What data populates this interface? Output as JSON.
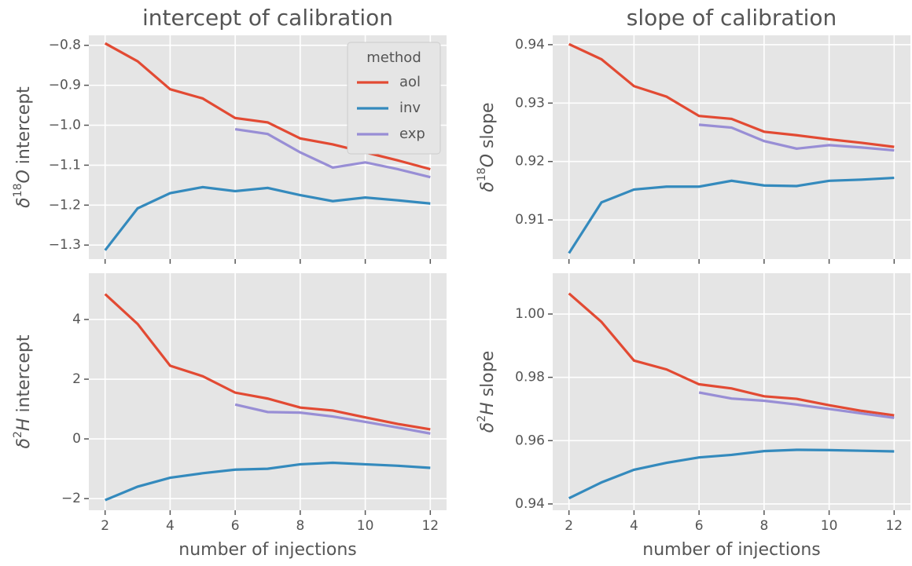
{
  "chart_data": [
    {
      "type": "line",
      "title": "intercept of calibration",
      "ylabel": [
        "δ",
        "18",
        "O",
        " intercept"
      ],
      "x": [
        2,
        3,
        4,
        5,
        6,
        7,
        8,
        9,
        10,
        11,
        12
      ],
      "xlim": [
        1.5,
        12.5
      ],
      "xticks": [
        2,
        4,
        6,
        8,
        10,
        12
      ],
      "ylim": [
        -1.335,
        -0.775
      ],
      "yticks": [
        {
          "value": -1.3,
          "label": "−1.3"
        },
        {
          "value": -1.2,
          "label": "−1.2"
        },
        {
          "value": -1.1,
          "label": "−1.1"
        },
        {
          "value": -1.0,
          "label": "−1.0"
        },
        {
          "value": -0.9,
          "label": "−0.9"
        },
        {
          "value": -0.8,
          "label": "−0.8"
        }
      ],
      "grid": true,
      "legend": "upper right",
      "legend_title": "method",
      "series": [
        {
          "name": "aol",
          "color": "#e24a33",
          "values": [
            -0.795,
            -0.84,
            -0.91,
            -0.933,
            -0.982,
            -0.993,
            -1.033,
            -1.048,
            -1.068,
            -1.088,
            -1.11
          ]
        },
        {
          "name": "inv",
          "color": "#348abd",
          "values": [
            -1.313,
            -1.208,
            -1.17,
            -1.155,
            -1.165,
            -1.157,
            -1.175,
            -1.19,
            -1.181,
            -1.188,
            -1.196
          ]
        },
        {
          "name": "exp",
          "color": "#988ed5",
          "values": [
            null,
            null,
            null,
            null,
            -1.01,
            -1.022,
            -1.068,
            -1.106,
            -1.093,
            -1.11,
            -1.13
          ]
        }
      ]
    },
    {
      "type": "line",
      "title": "slope of calibration",
      "ylabel": [
        "δ",
        "18",
        "O",
        " slope"
      ],
      "x": [
        2,
        3,
        4,
        5,
        6,
        7,
        8,
        9,
        10,
        11,
        12
      ],
      "xlim": [
        1.5,
        12.5
      ],
      "xticks": [
        2,
        4,
        6,
        8,
        10,
        12
      ],
      "ylim": [
        0.9033,
        0.9416
      ],
      "yticks": [
        0.91,
        0.92,
        0.93,
        0.94
      ],
      "grid": true,
      "series": [
        {
          "name": "aol",
          "color": "#e24a33",
          "values": [
            0.9401,
            0.9375,
            0.9329,
            0.9311,
            0.9278,
            0.9273,
            0.9251,
            0.9245,
            0.9238,
            0.9232,
            0.9225
          ]
        },
        {
          "name": "inv",
          "color": "#348abd",
          "values": [
            0.9043,
            0.913,
            0.9152,
            0.9157,
            0.9157,
            0.9167,
            0.9159,
            0.9158,
            0.9167,
            0.9169,
            0.9172
          ]
        },
        {
          "name": "exp",
          "color": "#988ed5",
          "values": [
            null,
            null,
            null,
            null,
            0.9263,
            0.9258,
            0.9235,
            0.9222,
            0.9228,
            0.9224,
            0.9219
          ]
        }
      ]
    },
    {
      "type": "line",
      "ylabel": [
        "δ",
        "2",
        "H",
        " intercept"
      ],
      "xlabel": "number of injections",
      "x": [
        2,
        3,
        4,
        5,
        6,
        7,
        8,
        9,
        10,
        11,
        12
      ],
      "xlim": [
        1.5,
        12.5
      ],
      "xticks": [
        2,
        4,
        6,
        8,
        10,
        12
      ],
      "ylim": [
        -2.39,
        5.55
      ],
      "yticks": [
        {
          "value": -2,
          "label": "−2"
        },
        0,
        2,
        4
      ],
      "grid": true,
      "series": [
        {
          "name": "aol",
          "color": "#e24a33",
          "values": [
            4.85,
            3.85,
            2.45,
            2.1,
            1.55,
            1.35,
            1.05,
            0.95,
            0.72,
            0.5,
            0.32
          ]
        },
        {
          "name": "inv",
          "color": "#348abd",
          "values": [
            -2.05,
            -1.6,
            -1.3,
            -1.15,
            -1.03,
            -1.0,
            -0.85,
            -0.8,
            -0.85,
            -0.9,
            -0.97
          ]
        },
        {
          "name": "exp",
          "color": "#988ed5",
          "values": [
            null,
            null,
            null,
            null,
            1.15,
            0.9,
            0.88,
            0.75,
            0.57,
            0.38,
            0.18
          ]
        }
      ]
    },
    {
      "type": "line",
      "ylabel": [
        "δ",
        "2",
        "H",
        " slope"
      ],
      "xlabel": "number of injections",
      "x": [
        2,
        3,
        4,
        5,
        6,
        7,
        8,
        9,
        10,
        11,
        12
      ],
      "xlim": [
        1.5,
        12.5
      ],
      "xticks": [
        2,
        4,
        6,
        8,
        10,
        12
      ],
      "ylim": [
        0.938,
        1.0129
      ],
      "yticks": [
        0.94,
        0.96,
        0.98,
        {
          "value": 1,
          "label": "1.00"
        }
      ],
      "grid": true,
      "series": [
        {
          "name": "aol",
          "color": "#e24a33",
          "values": [
            1.0065,
            0.9975,
            0.9853,
            0.9825,
            0.9778,
            0.9765,
            0.974,
            0.9732,
            0.9712,
            0.9694,
            0.968
          ]
        },
        {
          "name": "inv",
          "color": "#348abd",
          "values": [
            0.9418,
            0.9468,
            0.9508,
            0.953,
            0.9547,
            0.9555,
            0.9567,
            0.9571,
            0.957,
            0.9568,
            0.9566
          ]
        },
        {
          "name": "exp",
          "color": "#988ed5",
          "values": [
            null,
            null,
            null,
            null,
            0.9752,
            0.9733,
            0.9726,
            0.9714,
            0.97,
            0.9686,
            0.9672
          ]
        }
      ]
    }
  ]
}
